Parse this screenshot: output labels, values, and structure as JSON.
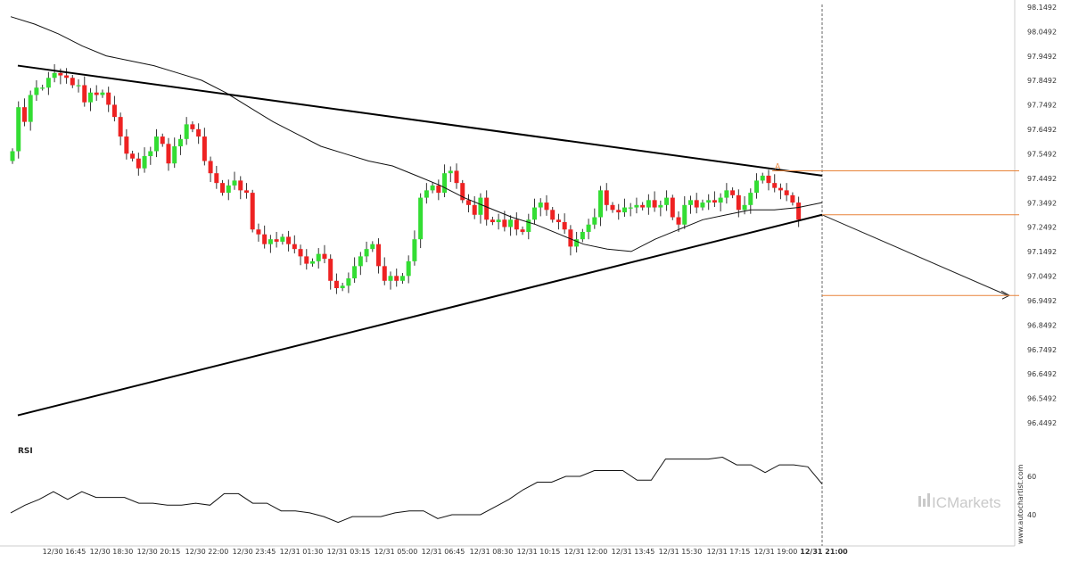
{
  "chart_data": {
    "type": "candlestick",
    "y_axis": {
      "ticks": [
        "98.1492",
        "98.0492",
        "97.9492",
        "97.8492",
        "97.7492",
        "97.6492",
        "97.5492",
        "97.4492",
        "97.3492",
        "97.2492",
        "97.1492",
        "97.0492",
        "96.9492",
        "96.8492",
        "96.7492",
        "96.6492",
        "96.5492",
        "96.4492"
      ],
      "range": [
        96.42,
        98.16
      ]
    },
    "x_axis": {
      "ticks": [
        "12/30 16:45",
        "12/30 18:30",
        "12/30 20:15",
        "12/30 22:00",
        "12/30 23:45",
        "12/31 01:30",
        "12/31 03:15",
        "12/31 05:00",
        "12/31 06:45",
        "12/31 08:30",
        "12/31 10:15",
        "12/31 12:00",
        "12/31 13:45",
        "12/31 15:30",
        "12/31 17:15",
        "12/31 19:00",
        "12/31 21:00"
      ],
      "highlighted_tick": "12/31 21:00",
      "bar_interval_minutes": 15
    },
    "bull_color": "#33dd33",
    "bear_color": "#ee2222",
    "candles_close": [
      97.56,
      97.74,
      97.68,
      97.79,
      97.82,
      97.82,
      97.86,
      97.88,
      97.87,
      97.86,
      97.83,
      97.83,
      97.76,
      97.8,
      97.79,
      97.8,
      97.75,
      97.7,
      97.62,
      97.55,
      97.53,
      97.49,
      97.54,
      97.56,
      97.62,
      97.59,
      97.51,
      97.58,
      97.61,
      97.67,
      97.65,
      97.62,
      97.52,
      97.47,
      97.43,
      97.39,
      97.42,
      97.44,
      97.4,
      97.39,
      97.24,
      97.22,
      97.18,
      97.2,
      97.19,
      97.21,
      97.18,
      97.16,
      97.13,
      97.1,
      97.11,
      97.14,
      97.12,
      97.03,
      97.0,
      97.01,
      97.04,
      97.09,
      97.13,
      97.16,
      97.18,
      97.09,
      97.03,
      97.05,
      97.03,
      97.05,
      97.11,
      97.2,
      97.37,
      97.4,
      97.42,
      97.39,
      97.47,
      97.48,
      97.43,
      97.36,
      97.34,
      97.3,
      97.37,
      97.28,
      97.27,
      97.28,
      97.25,
      97.28,
      97.24,
      97.23,
      97.28,
      97.33,
      97.35,
      97.32,
      97.28,
      97.27,
      97.24,
      97.17,
      97.2,
      97.23,
      97.26,
      97.29,
      97.4,
      97.34,
      97.32,
      97.31,
      97.33,
      97.33,
      97.34,
      97.33,
      97.36,
      97.33,
      97.34,
      97.37,
      97.29,
      97.26,
      97.34,
      97.36,
      97.33,
      97.35,
      97.36,
      97.35,
      97.37,
      97.4,
      97.38,
      97.32,
      97.34,
      97.39,
      97.44,
      97.46,
      97.43,
      97.41,
      97.4,
      97.38,
      97.35,
      97.28
    ],
    "moving_average_close": [
      98.11,
      98.08,
      98.04,
      97.99,
      97.95,
      97.93,
      97.91,
      97.88,
      97.85,
      97.8,
      97.74,
      97.68,
      97.63,
      97.58,
      97.55,
      97.52,
      97.5,
      97.46,
      97.42,
      97.37,
      97.33,
      97.29,
      97.26,
      97.22,
      97.18,
      97.16,
      97.15,
      97.2,
      97.24,
      97.28,
      97.3,
      97.32,
      97.32,
      97.33,
      97.35
    ],
    "rsi": {
      "label": "RSI",
      "levels": [
        "60",
        "40"
      ],
      "values": [
        41,
        45,
        48,
        52,
        48,
        52,
        49,
        49,
        49,
        46,
        46,
        45,
        45,
        46,
        45,
        51,
        51,
        46,
        46,
        42,
        42,
        41,
        39,
        36,
        39,
        39,
        39,
        41,
        42,
        42,
        38,
        40,
        40,
        40,
        44,
        48,
        53,
        57,
        57,
        60,
        60,
        63,
        63,
        63,
        58,
        58,
        69,
        69,
        69,
        69,
        70,
        66,
        66,
        62,
        66,
        66,
        65,
        56
      ]
    },
    "pattern": {
      "upper_line": [
        97.91,
        97.46
      ],
      "lower_line": [
        96.48,
        97.3
      ],
      "projection_target": 96.97,
      "marker": "A",
      "levels": [
        97.48,
        97.3,
        96.97
      ]
    },
    "annotation_color": "#e8843a"
  },
  "watermark": "www.autochartist.com",
  "brand": "ICMarkets"
}
